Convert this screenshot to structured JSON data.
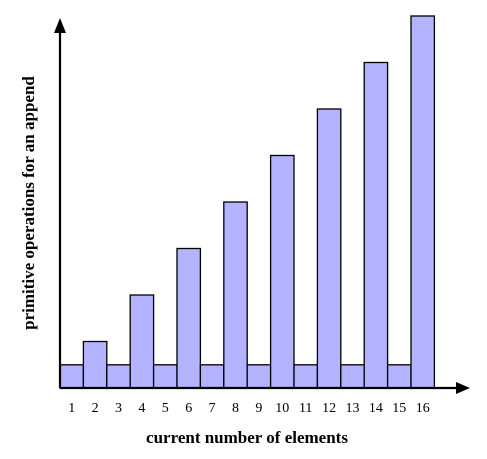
{
  "chart_data": {
    "type": "bar",
    "title": "",
    "xlabel": "current number of elements",
    "ylabel": "primitive operations for an append",
    "categories": [
      "1",
      "2",
      "3",
      "4",
      "5",
      "6",
      "7",
      "8",
      "9",
      "10",
      "11",
      "12",
      "13",
      "14",
      "15",
      "16"
    ],
    "values": [
      1,
      2,
      1,
      4,
      1,
      6,
      1,
      8,
      1,
      10,
      1,
      12,
      1,
      14,
      1,
      16
    ],
    "ylim": [
      0,
      16
    ],
    "grid": false,
    "legend": "none",
    "colors": {
      "bar_fill": "#b3b3ff",
      "bar_stroke": "#000000",
      "axis": "#000000"
    }
  }
}
